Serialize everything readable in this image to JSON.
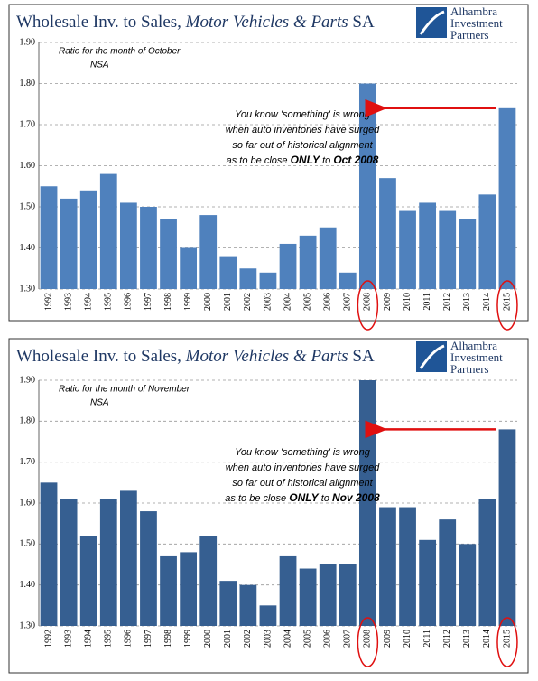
{
  "chart_data": [
    {
      "type": "bar",
      "title": [
        "Wholesale Inv. to Sales, ",
        "Motor Vehicles & Parts",
        " SA"
      ],
      "logo": [
        "Alhambra",
        "Investment",
        "Partners"
      ],
      "subtitle": [
        "Ratio for the month of October",
        "NSA"
      ],
      "annotation": {
        "lines": [
          "You know 'something' is wrong",
          "when auto inventories have surged",
          "so far out of historical alignment"
        ],
        "last_line": [
          "as to be close ",
          "ONLY",
          " to ",
          "Oct 2008"
        ]
      },
      "categories": [
        "1992",
        "1993",
        "1994",
        "1995",
        "1996",
        "1997",
        "1998",
        "1999",
        "2000",
        "2001",
        "2002",
        "2003",
        "2004",
        "2005",
        "2006",
        "2007",
        "2008",
        "2009",
        "2010",
        "2011",
        "2012",
        "2013",
        "2014",
        "2015"
      ],
      "values": [
        1.55,
        1.52,
        1.54,
        1.58,
        1.51,
        1.5,
        1.47,
        1.4,
        1.48,
        1.38,
        1.35,
        1.34,
        1.41,
        1.43,
        1.45,
        1.34,
        1.8,
        1.57,
        1.49,
        1.51,
        1.49,
        1.47,
        1.53,
        1.74
      ],
      "color": "#4f81bd",
      "ylim": [
        1.3,
        1.9
      ],
      "yticks": [
        {
          "value": 1.3,
          "label": "1.30"
        },
        {
          "value": 1.4,
          "label": "1.40"
        },
        {
          "value": 1.5,
          "label": "1.50"
        },
        {
          "value": 1.6,
          "label": "1.60"
        },
        {
          "value": 1.7,
          "label": "1.70"
        },
        {
          "value": 1.8,
          "label": "1.80"
        },
        {
          "value": 1.9,
          "label": "1.90"
        }
      ],
      "grid": true
    },
    {
      "type": "bar",
      "title": [
        "Wholesale Inv. to Sales, ",
        "Motor Vehicles & Parts",
        " SA"
      ],
      "logo": [
        "Alhambra",
        "Investment",
        "Partners"
      ],
      "subtitle": [
        "Ratio for the month of November",
        "NSA"
      ],
      "annotation": {
        "lines": [
          "You know 'something' is wrong",
          "when auto inventories have surged",
          "so far out of historical alignment"
        ],
        "last_line": [
          "as to be close ",
          "ONLY",
          " to ",
          "Nov 2008"
        ]
      },
      "categories": [
        "1992",
        "1993",
        "1994",
        "1995",
        "1996",
        "1997",
        "1998",
        "1999",
        "2000",
        "2001",
        "2002",
        "2003",
        "2004",
        "2005",
        "2006",
        "2007",
        "2008",
        "2009",
        "2010",
        "2011",
        "2012",
        "2013",
        "2014",
        "2015"
      ],
      "values": [
        1.65,
        1.61,
        1.52,
        1.61,
        1.63,
        1.58,
        1.47,
        1.48,
        1.52,
        1.41,
        1.4,
        1.35,
        1.47,
        1.44,
        1.45,
        1.45,
        1.9,
        1.59,
        1.59,
        1.51,
        1.56,
        1.5,
        1.61,
        1.78
      ],
      "color": "#365f91",
      "ylim": [
        1.3,
        1.9
      ],
      "yticks": [
        {
          "value": 1.3,
          "label": "1.30"
        },
        {
          "value": 1.4,
          "label": "1.40"
        },
        {
          "value": 1.5,
          "label": "1.50"
        },
        {
          "value": 1.6,
          "label": "1.60"
        },
        {
          "value": 1.7,
          "label": "1.70"
        },
        {
          "value": 1.8,
          "label": "1.80"
        },
        {
          "value": 1.9,
          "label": "1.90"
        }
      ],
      "grid": true
    }
  ]
}
